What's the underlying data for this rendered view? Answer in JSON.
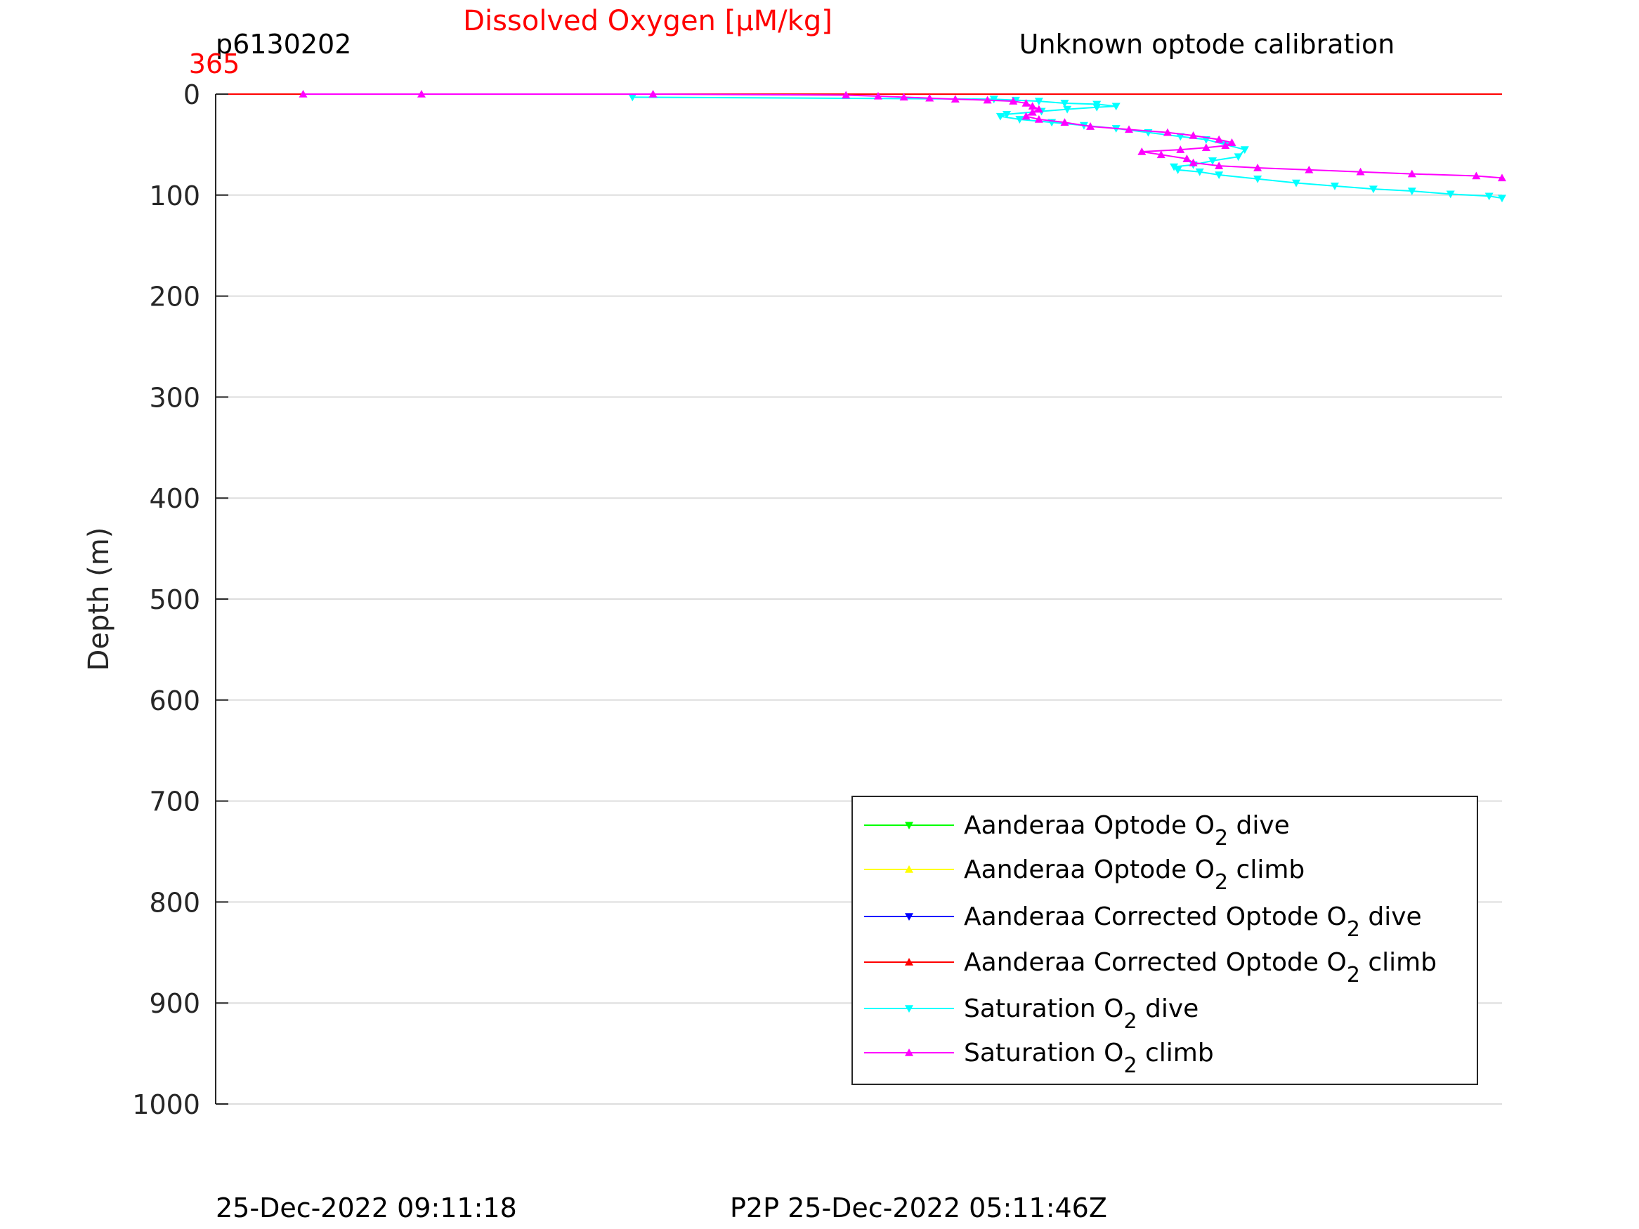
{
  "chart_data": {
    "type": "line",
    "title": "Dissolved Oxygen [μM/kg]",
    "left_header": "p6130202",
    "right_header": "Unknown optode calibration",
    "x_tick_label": "365",
    "ylabel": "Depth (m)",
    "ylim": [
      0,
      1000
    ],
    "y_ticks": [
      0,
      100,
      200,
      300,
      400,
      500,
      600,
      700,
      800,
      900,
      1000
    ],
    "y_tick_labels": [
      "0",
      "100",
      "200",
      "300",
      "400",
      "500",
      "600",
      "700",
      "800",
      "900",
      "1000"
    ],
    "grid": true,
    "y_reversed": true,
    "legend_position": "bottom-right",
    "footer_left": "25-Dec-2022 09:11:18",
    "footer_center": "P2P 25-Dec-2022 05:11:46Z",
    "colors": {
      "title": "#ff0000",
      "x_tick": "#ff0000",
      "grid": "#dddddd",
      "axis": "#262626"
    },
    "series": [
      {
        "name": "Aanderaa Optode O",
        "legend_sub": "2",
        "legend_suffix": " dive",
        "color": "#00ff00",
        "marker": "triangle-down",
        "x": [],
        "y": []
      },
      {
        "name": "Aanderaa Optode O",
        "legend_sub": "2",
        "legend_suffix": " climb",
        "color": "#ffff00",
        "marker": "triangle-up",
        "x": [],
        "y": []
      },
      {
        "name": "Aanderaa Corrected Optode O",
        "legend_sub": "2",
        "legend_suffix": " dive",
        "color": "#0000ff",
        "marker": "triangle-down",
        "x": [],
        "y": []
      },
      {
        "name": "Aanderaa Corrected Optode O",
        "legend_sub": "2",
        "legend_suffix": " climb",
        "color": "#ff0000",
        "marker": "triangle-up",
        "x": [
          0,
          1
        ],
        "y": [
          0,
          0
        ]
      },
      {
        "name": "Saturation O",
        "legend_sub": "2",
        "legend_suffix": " dive",
        "color": "#00ffff",
        "marker": "triangle-down",
        "x": [
          0.324,
          0.605,
          0.622,
          0.64,
          0.66,
          0.685,
          0.7,
          0.685,
          0.662,
          0.642,
          0.615,
          0.61,
          0.625,
          0.65,
          0.675,
          0.7,
          0.725,
          0.75,
          0.77,
          0.785,
          0.8,
          0.795,
          0.775,
          0.76,
          0.745,
          0.748,
          0.765,
          0.78,
          0.81,
          0.84,
          0.87,
          0.9,
          0.93,
          0.96,
          0.99,
          1.0
        ],
        "y": [
          3,
          5,
          6,
          7,
          9,
          10,
          12,
          13,
          15,
          17,
          20,
          22,
          25,
          28,
          31,
          34,
          38,
          42,
          45,
          50,
          55,
          62,
          66,
          70,
          72,
          75,
          77,
          80,
          84,
          88,
          91,
          94,
          96,
          99,
          101,
          103
        ]
      },
      {
        "name": "Saturation O",
        "legend_sub": "2",
        "legend_suffix": " climb",
        "color": "#ff00ff",
        "marker": "triangle-up",
        "x": [
          0.068,
          0.16,
          0.34,
          0.49,
          0.515,
          0.535,
          0.555,
          0.575,
          0.6,
          0.62,
          0.63,
          0.635,
          0.64,
          0.635,
          0.63,
          0.64,
          0.66,
          0.68,
          0.71,
          0.74,
          0.76,
          0.78,
          0.79,
          0.785,
          0.77,
          0.75,
          0.72,
          0.735,
          0.755,
          0.76,
          0.78,
          0.81,
          0.85,
          0.89,
          0.93,
          0.98,
          1.0
        ],
        "y": [
          0,
          0,
          0,
          1,
          2,
          3,
          4,
          5,
          6,
          7,
          9,
          12,
          15,
          18,
          22,
          25,
          28,
          32,
          35,
          38,
          41,
          45,
          48,
          51,
          53,
          55,
          57,
          60,
          64,
          68,
          71,
          73,
          75,
          77,
          79,
          81,
          83
        ]
      }
    ]
  }
}
